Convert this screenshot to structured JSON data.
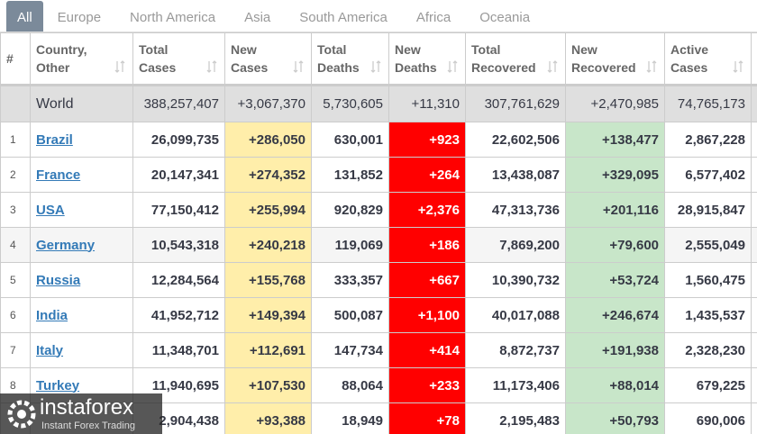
{
  "tabs": [
    "All",
    "Europe",
    "North America",
    "Asia",
    "South America",
    "Africa",
    "Oceania"
  ],
  "table": {
    "headers": [
      "#",
      "Country, Other",
      "Total Cases",
      "New Cases",
      "Total Deaths",
      "New Deaths",
      "Total Recovered",
      "New Recovered",
      "Active Cases"
    ],
    "world": {
      "country": "World",
      "values": [
        "388,257,407",
        "+3,067,370",
        "5,730,605",
        "+11,310",
        "307,761,629",
        "+2,470,985",
        "74,765,173"
      ]
    },
    "rows": [
      {
        "num": "1",
        "country": "Brazil",
        "values": [
          "26,099,735",
          "+286,050",
          "630,001",
          "+923",
          "22,602,506",
          "+138,477",
          "2,867,228"
        ]
      },
      {
        "num": "2",
        "country": "France",
        "values": [
          "20,147,341",
          "+274,352",
          "131,852",
          "+264",
          "13,438,087",
          "+329,095",
          "6,577,402"
        ]
      },
      {
        "num": "3",
        "country": "USA",
        "values": [
          "77,150,412",
          "+255,994",
          "920,829",
          "+2,376",
          "47,313,736",
          "+201,116",
          "28,915,847"
        ]
      },
      {
        "num": "4",
        "country": "Germany",
        "values": [
          "10,543,318",
          "+240,218",
          "119,069",
          "+186",
          "7,869,200",
          "+79,600",
          "2,555,049"
        ]
      },
      {
        "num": "5",
        "country": "Russia",
        "values": [
          "12,284,564",
          "+155,768",
          "333,357",
          "+667",
          "10,390,732",
          "+53,724",
          "1,560,475"
        ]
      },
      {
        "num": "6",
        "country": "India",
        "values": [
          "41,952,712",
          "+149,394",
          "500,087",
          "+1,100",
          "40,017,088",
          "+246,674",
          "1,435,537"
        ]
      },
      {
        "num": "7",
        "country": "Italy",
        "values": [
          "11,348,701",
          "+112,691",
          "147,734",
          "+414",
          "8,872,737",
          "+191,938",
          "2,328,230"
        ]
      },
      {
        "num": "8",
        "country": "Turkey",
        "values": [
          "11,940,695",
          "+107,530",
          "88,064",
          "+233",
          "11,173,406",
          "+88,014",
          "679,225"
        ]
      },
      {
        "values": [
          "2,904,438",
          "+93,388",
          "18,949",
          "+78",
          "2,195,483",
          "+50,793",
          "690,006"
        ]
      }
    ]
  },
  "watermark": {
    "brand": "instaforex",
    "tagline": "Instant Forex Trading"
  }
}
